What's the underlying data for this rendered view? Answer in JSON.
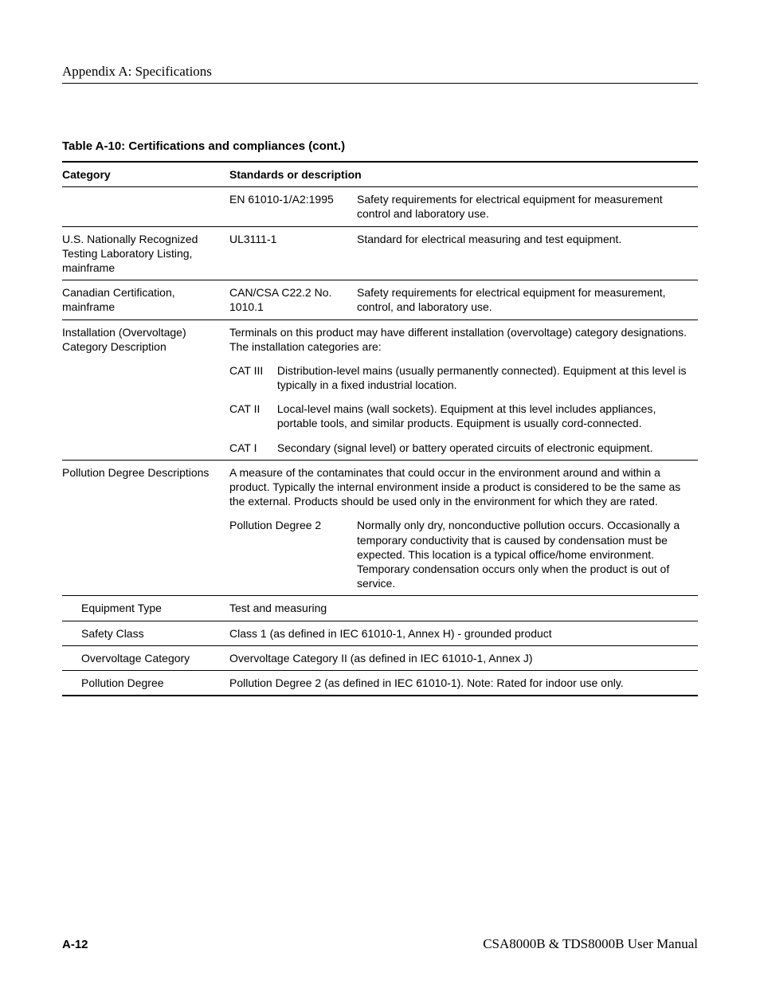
{
  "running_head": "Appendix A: Specifications",
  "table_title": "Table A-10: Certifications and compliances (cont.)",
  "headers": {
    "category": "Category",
    "standards": "Standards or description"
  },
  "rows": {
    "r0": {
      "category": "",
      "std": "EN 61010-1/A2:1995",
      "desc": "Safety requirements for electrical equipment for measurement control and laboratory use."
    },
    "r1": {
      "category": "U.S. Nationally Recognized Testing Laboratory Listing, mainframe",
      "std": "UL3111-1",
      "desc": "Standard for electrical measuring and test equipment."
    },
    "r2": {
      "category": "Canadian Certification, mainframe",
      "std": "CAN/CSA C22.2 No. 1010.1",
      "desc": "Safety requirements for electrical equipment for measurement, control, and laboratory use."
    },
    "r3": {
      "category": "Installation (Overvoltage) Category Description",
      "intro": "Terminals on this product may have different installation (overvoltage) category designations. The installation categories are:",
      "cat3_label": "CAT III",
      "cat3_text": "Distribution-level mains (usually permanently connected). Equipment at this level is typically in a fixed industrial location.",
      "cat2_label": "CAT II",
      "cat2_text": "Local-level mains (wall sockets). Equipment at this level includes appliances, portable tools, and similar products. Equipment is usually cord-connected.",
      "cat1_label": "CAT I",
      "cat1_text": "Secondary (signal level) or battery operated circuits of electronic equipment."
    },
    "r4": {
      "category": "Pollution Degree Descriptions",
      "intro": "A measure of the contaminates that could occur in the environment around and within a product. Typically the internal environment inside a product is considered to be the same as the external. Products should be used only in the environment for which they are rated.",
      "pd_label": "Pollution Degree 2",
      "pd_text": "Normally only dry, nonconductive pollution occurs. Occasionally a temporary conductivity that is caused by condensation must be expected. This location is a typical office/home environment. Temporary condensation occurs only when the product is out of service."
    },
    "r5": {
      "category": "Equipment Type",
      "desc": "Test and measuring"
    },
    "r6": {
      "category": "Safety Class",
      "desc": "Class 1 (as defined in IEC 61010-1, Annex H) - grounded product"
    },
    "r7": {
      "category": "Overvoltage Category",
      "desc": "Overvoltage Category II (as defined in IEC 61010-1, Annex J)"
    },
    "r8": {
      "category": "Pollution Degree",
      "desc": "Pollution Degree 2 (as defined in IEC 61010-1). Note: Rated for indoor use only."
    }
  },
  "footer": {
    "left": "A-12",
    "right": "CSA8000B & TDS8000B User Manual"
  }
}
